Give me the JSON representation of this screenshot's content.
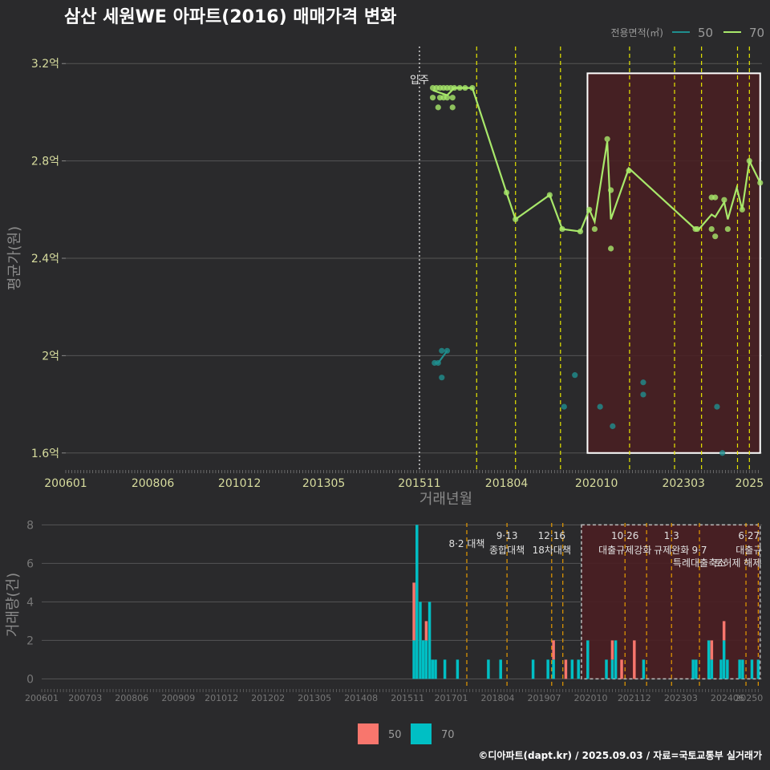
{
  "title": "삼산 세원WE 아파트(2016) 매매가격 변화",
  "credit": "©디아파트(dapt.kr) / 2025.09.03 / 자료=국토교통부 실거래가",
  "legend": {
    "title": "전용면적(㎡)",
    "items": [
      {
        "label": "50",
        "color": "#1f8e8e"
      },
      {
        "label": "70",
        "color": "#a8e86a"
      }
    ]
  },
  "bar_legend": [
    {
      "label": "50",
      "color": "#f8766d"
    },
    {
      "label": "70",
      "color": "#00bfc4"
    }
  ],
  "colors": {
    "background": "#2a2a2c",
    "grid": "#555555",
    "policy_line": "#e6e600",
    "policy_line_bottom": "#e69a00",
    "highlight_fill": "#4a1e22",
    "move_in_line": "#cccccc"
  },
  "chart_data": [
    {
      "type": "scatter",
      "title": "삼산 세원WE 아파트(2016) 매매가격 변화",
      "xlabel": "거래년월",
      "ylabel": "평균가(원)",
      "ylim": [
        1.53,
        3.27
      ],
      "xlim": [
        2006.0,
        2025.35
      ],
      "y_ticks": [
        {
          "value": 1.6,
          "label": "1.6억"
        },
        {
          "value": 2.0,
          "label": "2억"
        },
        {
          "value": 2.4,
          "label": "2.4억"
        },
        {
          "value": 2.8,
          "label": "2.8억"
        },
        {
          "value": 3.2,
          "label": "3.2억"
        }
      ],
      "x_ticks": [
        {
          "value": 2006.0,
          "label": "200601"
        },
        {
          "value": 2008.42,
          "label": "200806"
        },
        {
          "value": 2010.83,
          "label": "201012"
        },
        {
          "value": 2013.17,
          "label": "201305"
        },
        {
          "value": 2015.83,
          "label": "201511"
        },
        {
          "value": 2018.25,
          "label": "201804"
        },
        {
          "value": 2020.75,
          "label": "202010"
        },
        {
          "value": 2023.17,
          "label": "202303"
        },
        {
          "value": 2025.0,
          "label": "2025"
        }
      ],
      "move_in": {
        "x": 2015.83,
        "label": "입주"
      },
      "policy_lines": [
        2017.42,
        2018.5,
        2019.75,
        2021.67,
        2022.92,
        2023.67,
        2024.67,
        2025.0
      ],
      "highlight": {
        "x0": 2020.5,
        "x1": 2025.3,
        "y0": 1.6,
        "y1": 3.16
      },
      "series": [
        {
          "name": "50",
          "points": [
            [
              2016.25,
              1.97
            ],
            [
              2016.35,
              1.97
            ],
            [
              2016.45,
              2.02
            ],
            [
              2016.6,
              2.02
            ],
            [
              2016.45,
              1.91
            ],
            [
              2019.85,
              1.79
            ],
            [
              2020.15,
              1.92
            ],
            [
              2020.85,
              1.79
            ],
            [
              2021.2,
              1.71
            ],
            [
              2022.05,
              1.89
            ],
            [
              2022.05,
              1.84
            ],
            [
              2024.1,
              1.79
            ],
            [
              2024.25,
              1.6
            ]
          ],
          "line": [
            [
              2016.25,
              1.97
            ],
            [
              2016.35,
              1.97
            ],
            [
              2016.6,
              2.02
            ]
          ]
        },
        {
          "name": "70",
          "points": [
            [
              2016.2,
              3.1
            ],
            [
              2016.3,
              3.1
            ],
            [
              2016.4,
              3.1
            ],
            [
              2016.5,
              3.1
            ],
            [
              2016.6,
              3.1
            ],
            [
              2016.7,
              3.1
            ],
            [
              2016.8,
              3.1
            ],
            [
              2016.95,
              3.1
            ],
            [
              2017.1,
              3.1
            ],
            [
              2017.3,
              3.1
            ],
            [
              2016.2,
              3.06
            ],
            [
              2016.4,
              3.06
            ],
            [
              2016.5,
              3.06
            ],
            [
              2016.6,
              3.06
            ],
            [
              2016.75,
              3.06
            ],
            [
              2016.35,
              3.02
            ],
            [
              2016.75,
              3.02
            ],
            [
              2018.25,
              2.67
            ],
            [
              2018.5,
              2.56
            ],
            [
              2019.45,
              2.66
            ],
            [
              2019.8,
              2.52
            ],
            [
              2020.3,
              2.51
            ],
            [
              2020.55,
              2.6
            ],
            [
              2020.7,
              2.52
            ],
            [
              2021.05,
              2.89
            ],
            [
              2021.15,
              2.44
            ],
            [
              2021.15,
              2.68
            ],
            [
              2021.65,
              2.76
            ],
            [
              2023.5,
              2.52
            ],
            [
              2023.55,
              2.52
            ],
            [
              2023.95,
              2.65
            ],
            [
              2024.05,
              2.65
            ],
            [
              2023.95,
              2.52
            ],
            [
              2024.05,
              2.49
            ],
            [
              2024.3,
              2.64
            ],
            [
              2024.4,
              2.52
            ],
            [
              2024.8,
              2.6
            ],
            [
              2025.0,
              2.8
            ],
            [
              2025.3,
              2.71
            ]
          ],
          "line": [
            [
              2016.2,
              3.09
            ],
            [
              2016.4,
              3.08
            ],
            [
              2016.6,
              3.07
            ],
            [
              2016.8,
              3.1
            ],
            [
              2017.0,
              3.1
            ],
            [
              2017.3,
              3.1
            ],
            [
              2018.25,
              2.67
            ],
            [
              2018.5,
              2.56
            ],
            [
              2019.45,
              2.66
            ],
            [
              2019.8,
              2.52
            ],
            [
              2020.3,
              2.51
            ],
            [
              2020.55,
              2.6
            ],
            [
              2020.7,
              2.55
            ],
            [
              2021.05,
              2.88
            ],
            [
              2021.15,
              2.56
            ],
            [
              2021.65,
              2.77
            ],
            [
              2023.5,
              2.52
            ],
            [
              2023.6,
              2.52
            ],
            [
              2023.95,
              2.58
            ],
            [
              2024.05,
              2.57
            ],
            [
              2024.3,
              2.63
            ],
            [
              2024.4,
              2.56
            ],
            [
              2024.65,
              2.69
            ],
            [
              2024.8,
              2.6
            ],
            [
              2025.0,
              2.8
            ],
            [
              2025.3,
              2.71
            ]
          ]
        }
      ]
    },
    {
      "type": "bar",
      "ylabel": "거래량(건)",
      "ylim": [
        -0.4,
        8.1
      ],
      "xlim": [
        2006.0,
        2025.35
      ],
      "y_ticks": [
        {
          "value": 0,
          "label": "0"
        },
        {
          "value": 2,
          "label": "2"
        },
        {
          "value": 4,
          "label": "4"
        },
        {
          "value": 6,
          "label": "6"
        },
        {
          "value": 8,
          "label": "8"
        }
      ],
      "x_ticks": [
        {
          "value": 2006.0,
          "label": "200601"
        },
        {
          "value": 2007.17,
          "label": "200703"
        },
        {
          "value": 2008.42,
          "label": "200806"
        },
        {
          "value": 2009.67,
          "label": "200909"
        },
        {
          "value": 2010.83,
          "label": "201012"
        },
        {
          "value": 2012.08,
          "label": "201202"
        },
        {
          "value": 2013.33,
          "label": "201305"
        },
        {
          "value": 2014.58,
          "label": "201408"
        },
        {
          "value": 2015.83,
          "label": "201511"
        },
        {
          "value": 2017.0,
          "label": "201701"
        },
        {
          "value": 2018.25,
          "label": "201804"
        },
        {
          "value": 2019.5,
          "label": "201907"
        },
        {
          "value": 2020.75,
          "label": "202010"
        },
        {
          "value": 2021.92,
          "label": "202112"
        },
        {
          "value": 2023.17,
          "label": "202303"
        },
        {
          "value": 2024.42,
          "label": "202406"
        },
        {
          "value": 2025.0,
          "label": "20250"
        }
      ],
      "highlight": {
        "x0": 2020.5,
        "x1": 2025.3,
        "y0": 0,
        "y1": 8
      },
      "bars": [
        {
          "x": 2016.0,
          "s50": 3,
          "s70": 2
        },
        {
          "x": 2016.08,
          "s50": 0,
          "s70": 8
        },
        {
          "x": 2016.17,
          "s50": 0,
          "s70": 4
        },
        {
          "x": 2016.25,
          "s50": 0,
          "s70": 2
        },
        {
          "x": 2016.33,
          "s50": 1,
          "s70": 2
        },
        {
          "x": 2016.42,
          "s50": 0,
          "s70": 4
        },
        {
          "x": 2016.5,
          "s50": 0,
          "s70": 1
        },
        {
          "x": 2016.58,
          "s50": 0,
          "s70": 1
        },
        {
          "x": 2016.83,
          "s50": 0,
          "s70": 1
        },
        {
          "x": 2017.17,
          "s50": 0,
          "s70": 1
        },
        {
          "x": 2018.0,
          "s50": 0,
          "s70": 1
        },
        {
          "x": 2018.33,
          "s50": 0,
          "s70": 1
        },
        {
          "x": 2019.2,
          "s50": 0,
          "s70": 1
        },
        {
          "x": 2019.6,
          "s50": 0,
          "s70": 1
        },
        {
          "x": 2019.75,
          "s50": 1,
          "s70": 1
        },
        {
          "x": 2020.08,
          "s50": 1,
          "s70": 0
        },
        {
          "x": 2020.25,
          "s50": 0,
          "s70": 1
        },
        {
          "x": 2020.42,
          "s50": 0,
          "s70": 1
        },
        {
          "x": 2020.67,
          "s50": 0,
          "s70": 2
        },
        {
          "x": 2021.17,
          "s50": 0,
          "s70": 1
        },
        {
          "x": 2021.33,
          "s50": 1,
          "s70": 1
        },
        {
          "x": 2021.42,
          "s50": 0,
          "s70": 2
        },
        {
          "x": 2021.58,
          "s50": 1,
          "s70": 0
        },
        {
          "x": 2021.92,
          "s50": 2,
          "s70": 0
        },
        {
          "x": 2022.17,
          "s50": 0,
          "s70": 1
        },
        {
          "x": 2023.5,
          "s50": 0,
          "s70": 1
        },
        {
          "x": 2023.58,
          "s50": 0,
          "s70": 1
        },
        {
          "x": 2023.92,
          "s50": 0,
          "s70": 2
        },
        {
          "x": 2024.0,
          "s50": 1,
          "s70": 1
        },
        {
          "x": 2024.25,
          "s50": 0,
          "s70": 1
        },
        {
          "x": 2024.33,
          "s50": 1,
          "s70": 2
        },
        {
          "x": 2024.42,
          "s50": 0,
          "s70": 1
        },
        {
          "x": 2024.75,
          "s50": 0,
          "s70": 1
        },
        {
          "x": 2024.83,
          "s50": 0,
          "s70": 1
        },
        {
          "x": 2025.08,
          "s50": 0,
          "s70": 1
        },
        {
          "x": 2025.25,
          "s50": 0,
          "s70": 1
        }
      ],
      "policy_lines": [
        2017.42,
        2018.5,
        2019.7,
        2020.0,
        2021.67,
        2022.25,
        2022.92,
        2023.67,
        2024.92,
        2025.25
      ],
      "annotations": [
        {
          "x": 2017.42,
          "line1": "",
          "line2": "8·2 대책",
          "row": 1
        },
        {
          "x": 2018.5,
          "line1": "9·13",
          "line2": "종합대책",
          "row": 1
        },
        {
          "x": 2019.7,
          "line1": "12·16",
          "line2": "18차대책",
          "row": 1
        },
        {
          "x": 2021.67,
          "line1": "10·26",
          "line2": "대출규제강화",
          "row": 1
        },
        {
          "x": 2022.92,
          "line1": "1·3",
          "line2": "규제완화",
          "row": 1
        },
        {
          "x": 2023.67,
          "line1": "9·7",
          "line2": "특례대출축소",
          "row": 2
        },
        {
          "x": 2025.0,
          "line1": "6·27",
          "line2": "대출규",
          "row": 1
        },
        {
          "x": 2024.7,
          "line1": "",
          "line2": "토허제 해제",
          "row": 2
        }
      ]
    }
  ]
}
